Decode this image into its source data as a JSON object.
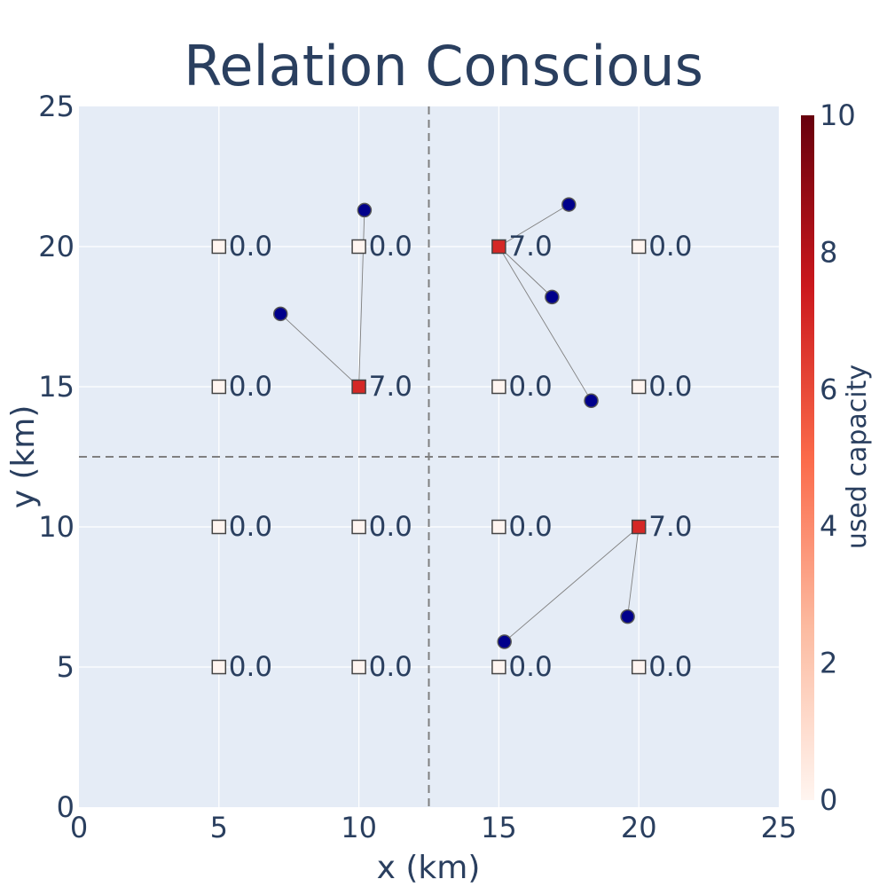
{
  "chart_data": {
    "type": "scatter",
    "title": "Relation Conscious",
    "xlabel": "x (km)",
    "ylabel": "y (km)",
    "xlim": [
      0,
      25
    ],
    "ylim": [
      0,
      25
    ],
    "xticks": [
      "0",
      "5",
      "10",
      "15",
      "20",
      "25"
    ],
    "yticks": [
      "0",
      "5",
      "10",
      "15",
      "20",
      "25"
    ],
    "grid": true,
    "dividers": {
      "x": 12.5,
      "y": 12.5,
      "style": "dashed"
    },
    "colorbar": {
      "label": "used capacity",
      "range": [
        0,
        10
      ],
      "ticks": [
        "0",
        "2",
        "4",
        "6",
        "8",
        "10"
      ],
      "colorscale": [
        "#fff5f0",
        "#fcbba1",
        "#fb6a4a",
        "#cb181d",
        "#67000d"
      ]
    },
    "facilities": [
      {
        "x": 5,
        "y": 20,
        "used": 0,
        "label": "0.0"
      },
      {
        "x": 10,
        "y": 20,
        "used": 0,
        "label": "0.0"
      },
      {
        "x": 15,
        "y": 20,
        "used": 7,
        "label": "7.0"
      },
      {
        "x": 20,
        "y": 20,
        "used": 0,
        "label": "0.0"
      },
      {
        "x": 5,
        "y": 15,
        "used": 0,
        "label": "0.0"
      },
      {
        "x": 10,
        "y": 15,
        "used": 7,
        "label": "7.0"
      },
      {
        "x": 15,
        "y": 15,
        "used": 0,
        "label": "0.0"
      },
      {
        "x": 20,
        "y": 15,
        "used": 0,
        "label": "0.0"
      },
      {
        "x": 5,
        "y": 10,
        "used": 0,
        "label": "0.0"
      },
      {
        "x": 10,
        "y": 10,
        "used": 0,
        "label": "0.0"
      },
      {
        "x": 15,
        "y": 10,
        "used": 0,
        "label": "0.0"
      },
      {
        "x": 20,
        "y": 10,
        "used": 7,
        "label": "7.0"
      },
      {
        "x": 5,
        "y": 5,
        "used": 0,
        "label": "0.0"
      },
      {
        "x": 10,
        "y": 5,
        "used": 0,
        "label": "0.0"
      },
      {
        "x": 15,
        "y": 5,
        "used": 0,
        "label": "0.0"
      },
      {
        "x": 20,
        "y": 5,
        "used": 0,
        "label": "0.0"
      }
    ],
    "customers": [
      {
        "x": 10.2,
        "y": 21.3,
        "assigned_to": [
          10,
          15
        ]
      },
      {
        "x": 7.2,
        "y": 17.6,
        "assigned_to": [
          10,
          15
        ]
      },
      {
        "x": 17.5,
        "y": 21.5,
        "assigned_to": [
          15,
          20
        ]
      },
      {
        "x": 16.9,
        "y": 18.2,
        "assigned_to": [
          15,
          20
        ]
      },
      {
        "x": 18.3,
        "y": 14.5,
        "assigned_to": [
          15,
          20
        ]
      },
      {
        "x": 15.2,
        "y": 5.9,
        "assigned_to": [
          20,
          10
        ]
      },
      {
        "x": 19.6,
        "y": 6.8,
        "assigned_to": [
          20,
          10
        ]
      }
    ]
  }
}
